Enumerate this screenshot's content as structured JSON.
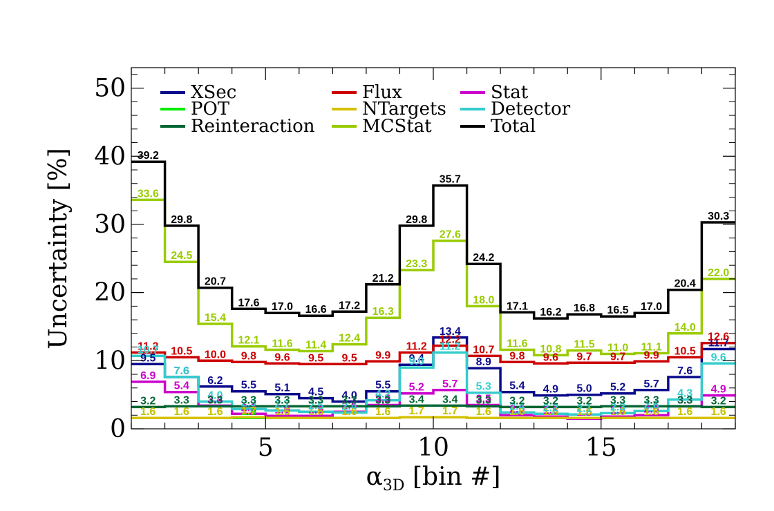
{
  "chart_data": {
    "type": "line",
    "style": "step-histogram",
    "xlabel": "α",
    "xlabel_sub": "3D",
    "xlabel_suffix": " [bin #]",
    "ylabel": "Uncertainty [%]",
    "xlim": [
      1,
      19
    ],
    "ylim": [
      0,
      53
    ],
    "xticks": [
      5,
      10,
      15
    ],
    "yticks": [
      0,
      10,
      20,
      30,
      40,
      50
    ],
    "bins": [
      1,
      2,
      3,
      4,
      5,
      6,
      7,
      8,
      9,
      10,
      11,
      12,
      13,
      14,
      15,
      16,
      17,
      18
    ],
    "grid": false,
    "legend_position": "top",
    "series": [
      {
        "name": "XSec",
        "color": "#0a0a8c",
        "values": [
          9.5,
          7.6,
          6.2,
          5.5,
          5.1,
          4.5,
          4.0,
          5.5,
          9.4,
          13.4,
          8.9,
          5.4,
          4.9,
          5.0,
          5.2,
          5.7,
          7.6,
          11.7
        ]
      },
      {
        "name": "Flux",
        "color": "#cc0000",
        "values": [
          11.2,
          10.5,
          10.0,
          9.8,
          9.6,
          9.5,
          9.5,
          9.9,
          11.2,
          12.2,
          10.7,
          9.8,
          9.6,
          9.7,
          9.7,
          9.9,
          10.5,
          12.6
        ]
      },
      {
        "name": "Stat",
        "color": "#cc00cc",
        "values": [
          6.9,
          5.4,
          3.4,
          2.2,
          1.9,
          1.9,
          2.5,
          3.5,
          5.2,
          5.7,
          3.5,
          2.0,
          1.8,
          1.5,
          1.8,
          2.0,
          3.3,
          4.9
        ]
      },
      {
        "name": "POT",
        "color": "#00ee00",
        "values": [
          1.6,
          1.6,
          1.6,
          1.6,
          1.6,
          1.6,
          1.6,
          1.6,
          1.7,
          1.7,
          1.6,
          1.6,
          1.6,
          1.6,
          1.6,
          1.6,
          1.6,
          1.6
        ]
      },
      {
        "name": "NTargets",
        "color": "#d4c000",
        "values": [
          1.6,
          1.6,
          1.6,
          1.7,
          1.6,
          1.6,
          1.6,
          1.6,
          1.7,
          1.7,
          1.6,
          1.6,
          1.6,
          1.6,
          1.6,
          1.6,
          1.6,
          1.6
        ]
      },
      {
        "name": "Detector",
        "color": "#33cccc",
        "values": [
          10.7,
          7.6,
          4.0,
          2.9,
          2.7,
          2.5,
          2.4,
          4.2,
          9.0,
          11.2,
          5.3,
          2.4,
          2.2,
          2.1,
          2.3,
          2.6,
          4.3,
          9.6
        ]
      },
      {
        "name": "Reinteraction",
        "color": "#006633",
        "values": [
          3.2,
          3.3,
          3.3,
          3.3,
          3.3,
          3.3,
          3.3,
          3.3,
          3.4,
          3.4,
          3.3,
          3.2,
          3.2,
          3.2,
          3.3,
          3.3,
          3.3,
          3.2
        ]
      },
      {
        "name": "MCStat",
        "color": "#99cc00",
        "values": [
          33.6,
          24.5,
          15.4,
          12.1,
          11.6,
          11.4,
          12.4,
          16.3,
          23.3,
          27.6,
          18.0,
          11.6,
          10.8,
          11.5,
          11.0,
          11.1,
          14.0,
          22.0
        ]
      },
      {
        "name": "Total",
        "color": "#000000",
        "values": [
          39.2,
          29.8,
          20.7,
          17.6,
          17.0,
          16.6,
          17.2,
          21.2,
          29.8,
          35.7,
          24.2,
          17.1,
          16.2,
          16.8,
          16.5,
          17.0,
          20.4,
          30.3
        ]
      }
    ],
    "legend_order": [
      "XSec",
      "Flux",
      "Stat",
      "POT",
      "NTargets",
      "Detector",
      "Reinteraction",
      "MCStat",
      "Total"
    ]
  }
}
